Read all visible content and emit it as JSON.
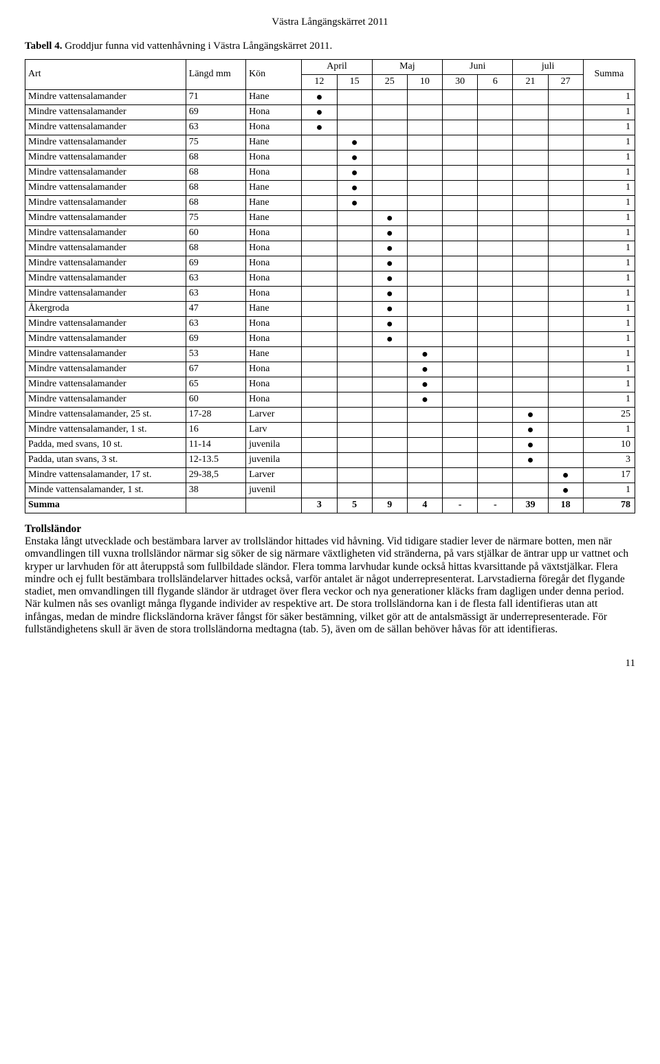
{
  "header": "Västra Långängskärret 2011",
  "caption_bold": "Tabell 4.",
  "caption_rest": " Groddjur funna vid vattenhåvning i Västra Långängskärret 2011.",
  "month_groups": [
    "April",
    "Maj",
    "Juni",
    "juli"
  ],
  "columns": {
    "art": "Art",
    "langd": "Längd mm",
    "kon": "Kön",
    "dates": [
      "12",
      "15",
      "25",
      "10",
      "30",
      "6",
      "21",
      "27"
    ],
    "summa": "Summa"
  },
  "rows": [
    {
      "art": "Mindre vattensalamander",
      "len": "71",
      "kon": "Hane",
      "marks": [
        1,
        0,
        0,
        0,
        0,
        0,
        0,
        0
      ],
      "sum": "1"
    },
    {
      "art": "Mindre vattensalamander",
      "len": "69",
      "kon": "Hona",
      "marks": [
        1,
        0,
        0,
        0,
        0,
        0,
        0,
        0
      ],
      "sum": "1"
    },
    {
      "art": "Mindre vattensalamander",
      "len": "63",
      "kon": "Hona",
      "marks": [
        1,
        0,
        0,
        0,
        0,
        0,
        0,
        0
      ],
      "sum": "1"
    },
    {
      "art": "Mindre vattensalamander",
      "len": "75",
      "kon": "Hane",
      "marks": [
        0,
        1,
        0,
        0,
        0,
        0,
        0,
        0
      ],
      "sum": "1"
    },
    {
      "art": "Mindre vattensalamander",
      "len": "68",
      "kon": "Hona",
      "marks": [
        0,
        1,
        0,
        0,
        0,
        0,
        0,
        0
      ],
      "sum": "1"
    },
    {
      "art": "Mindre vattensalamander",
      "len": "68",
      "kon": "Hona",
      "marks": [
        0,
        1,
        0,
        0,
        0,
        0,
        0,
        0
      ],
      "sum": "1"
    },
    {
      "art": "Mindre vattensalamander",
      "len": "68",
      "kon": "Hane",
      "marks": [
        0,
        1,
        0,
        0,
        0,
        0,
        0,
        0
      ],
      "sum": "1"
    },
    {
      "art": "Mindre vattensalamander",
      "len": "68",
      "kon": "Hane",
      "marks": [
        0,
        1,
        0,
        0,
        0,
        0,
        0,
        0
      ],
      "sum": "1"
    },
    {
      "art": "Mindre vattensalamander",
      "len": "75",
      "kon": "Hane",
      "marks": [
        0,
        0,
        1,
        0,
        0,
        0,
        0,
        0
      ],
      "sum": "1"
    },
    {
      "art": "Mindre vattensalamander",
      "len": "60",
      "kon": "Hona",
      "marks": [
        0,
        0,
        1,
        0,
        0,
        0,
        0,
        0
      ],
      "sum": "1"
    },
    {
      "art": "Mindre vattensalamander",
      "len": "68",
      "kon": "Hona",
      "marks": [
        0,
        0,
        1,
        0,
        0,
        0,
        0,
        0
      ],
      "sum": "1"
    },
    {
      "art": "Mindre vattensalamander",
      "len": "69",
      "kon": "Hona",
      "marks": [
        0,
        0,
        1,
        0,
        0,
        0,
        0,
        0
      ],
      "sum": "1"
    },
    {
      "art": "Mindre vattensalamander",
      "len": "63",
      "kon": "Hona",
      "marks": [
        0,
        0,
        1,
        0,
        0,
        0,
        0,
        0
      ],
      "sum": "1"
    },
    {
      "art": "Mindre vattensalamander",
      "len": "63",
      "kon": "Hona",
      "marks": [
        0,
        0,
        1,
        0,
        0,
        0,
        0,
        0
      ],
      "sum": "1"
    },
    {
      "art": "Åkergroda",
      "len": "47",
      "kon": "Hane",
      "marks": [
        0,
        0,
        1,
        0,
        0,
        0,
        0,
        0
      ],
      "sum": "1"
    },
    {
      "art": "Mindre vattensalamander",
      "len": "63",
      "kon": "Hona",
      "marks": [
        0,
        0,
        1,
        0,
        0,
        0,
        0,
        0
      ],
      "sum": "1"
    },
    {
      "art": "Mindre vattensalamander",
      "len": "69",
      "kon": "Hona",
      "marks": [
        0,
        0,
        1,
        0,
        0,
        0,
        0,
        0
      ],
      "sum": "1"
    },
    {
      "art": "Mindre vattensalamander",
      "len": "53",
      "kon": "Hane",
      "marks": [
        0,
        0,
        0,
        1,
        0,
        0,
        0,
        0
      ],
      "sum": "1"
    },
    {
      "art": "Mindre vattensalamander",
      "len": "67",
      "kon": "Hona",
      "marks": [
        0,
        0,
        0,
        1,
        0,
        0,
        0,
        0
      ],
      "sum": "1"
    },
    {
      "art": "Mindre vattensalamander",
      "len": "65",
      "kon": "Hona",
      "marks": [
        0,
        0,
        0,
        1,
        0,
        0,
        0,
        0
      ],
      "sum": "1"
    },
    {
      "art": "Mindre vattensalamander",
      "len": "60",
      "kon": "Hona",
      "marks": [
        0,
        0,
        0,
        1,
        0,
        0,
        0,
        0
      ],
      "sum": "1"
    },
    {
      "art": "Mindre vattensalamander, 25 st.",
      "len": "17-28",
      "kon": "Larver",
      "marks": [
        0,
        0,
        0,
        0,
        0,
        0,
        1,
        0
      ],
      "sum": "25"
    },
    {
      "art": "Mindre vattensalamander, 1 st.",
      "len": "16",
      "kon": "Larv",
      "marks": [
        0,
        0,
        0,
        0,
        0,
        0,
        1,
        0
      ],
      "sum": "1"
    },
    {
      "art": "Padda, med svans, 10 st.",
      "len": "11-14",
      "kon": "juvenila",
      "marks": [
        0,
        0,
        0,
        0,
        0,
        0,
        1,
        0
      ],
      "sum": "10"
    },
    {
      "art": "Padda, utan svans, 3 st.",
      "len": "12-13.5",
      "kon": "juvenila",
      "marks": [
        0,
        0,
        0,
        0,
        0,
        0,
        1,
        0
      ],
      "sum": "3"
    },
    {
      "art": "Mindre vattensalamander, 17 st.",
      "len": "29-38,5",
      "kon": "Larver",
      "marks": [
        0,
        0,
        0,
        0,
        0,
        0,
        0,
        1
      ],
      "sum": "17"
    },
    {
      "art": "Minde vattensalamander, 1 st.",
      "len": "38",
      "kon": "juvenil",
      "marks": [
        0,
        0,
        0,
        0,
        0,
        0,
        0,
        1
      ],
      "sum": "1"
    }
  ],
  "summa_row": {
    "label": "Summa",
    "values": [
      "3",
      "5",
      "9",
      "4",
      "-",
      "-",
      "39",
      "18"
    ],
    "total": "78"
  },
  "section_title": "Trollsländor",
  "body_text": "Enstaka långt utvecklade och bestämbara larver av trollsländor hittades vid håvning. Vid tidigare stadier lever de närmare botten, men när omvandlingen till vuxna trollsländor närmar sig söker de sig närmare växtligheten vid stränderna, på vars stjälkar de äntrar upp ur vattnet och kryper ur larvhuden för att återuppstå som fullbildade sländor. Flera tomma larvhudar kunde också hittas kvarsittande på växtstjälkar. Flera mindre och ej fullt bestämbara trollsländelarver hittades också, varför antalet är något underrepresenterat. Larvstadierna föregår det flygande stadiet, men omvandlingen till flygande sländor är utdraget över flera veckor och nya generationer kläcks fram dagligen under denna period. När kulmen nås ses ovanligt många flygande individer av respektive art. De stora trollsländorna kan i de flesta fall identifieras utan att infångas, medan de mindre flicksländorna kräver fångst för säker bestämning, vilket gör att de antalsmässigt är underrepresenterade. För fullständighetens skull är även de stora trollsländorna medtagna (tab. 5), även om de sällan behöver håvas för att identifieras.",
  "page_number": "11",
  "dot": "●"
}
